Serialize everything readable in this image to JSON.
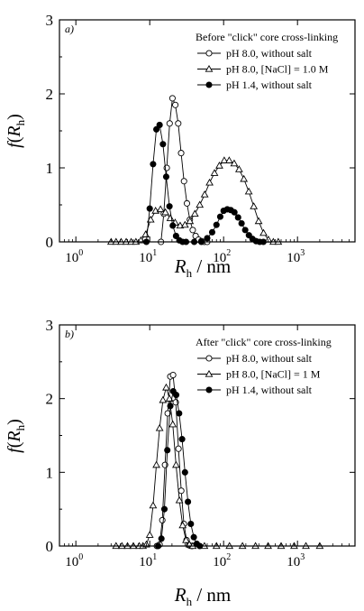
{
  "figure": {
    "ylabel_func": "f",
    "ylabel_sym": "R",
    "ylabel_sub": "h",
    "xlabel_sym": "R",
    "xlabel_sub": "h",
    "xlabel_unit": " / nm"
  },
  "chart_data": [
    {
      "type": "line",
      "panel_label": "a)",
      "legend_title": "Before \"click\" core cross-linking",
      "legend_position": "top-right",
      "x_scale": "log",
      "xlim": [
        0.6,
        6000
      ],
      "ylim": [
        0,
        3
      ],
      "x_ticks": [
        {
          "v": 1,
          "e": "0"
        },
        {
          "v": 10,
          "e": "1"
        },
        {
          "v": 100,
          "e": "2"
        },
        {
          "v": 1000,
          "e": "3"
        }
      ],
      "y_ticks": [
        0,
        1,
        2,
        3
      ],
      "grid": false,
      "series": [
        {
          "name": "pH 8.0, without salt",
          "marker": "open-circle",
          "x": [
            14.2,
            15.5,
            17.0,
            18.6,
            20.3,
            22.2,
            24.3,
            26.6,
            29.1,
            31.9,
            34.9,
            38.2,
            41.8,
            45.8,
            50.1,
            54.8,
            60.0
          ],
          "y": [
            0.0,
            0.38,
            1.0,
            1.6,
            1.94,
            1.85,
            1.6,
            1.2,
            0.82,
            0.52,
            0.3,
            0.16,
            0.08,
            0.03,
            0.01,
            0.0,
            0.0
          ]
        },
        {
          "name": "pH 8.0, [NaCl] = 1.0 M",
          "marker": "open-triangle",
          "x": [
            3.0,
            3.5,
            4.1,
            4.8,
            5.6,
            6.5,
            7.6,
            8.8,
            10.3,
            12.0,
            14.0,
            16.3,
            19.0,
            22.1,
            25.8,
            30.0,
            35.0,
            40.8,
            47.5,
            55.4,
            64.5,
            75.2,
            87.6,
            102,
            119,
            139,
            162,
            188,
            219,
            256,
            298,
            347,
            404,
            471,
            549
          ],
          "y": [
            0.0,
            0.0,
            0.0,
            0.0,
            0.0,
            0.0,
            0.02,
            0.1,
            0.3,
            0.42,
            0.44,
            0.4,
            0.32,
            0.26,
            0.22,
            0.23,
            0.28,
            0.38,
            0.5,
            0.64,
            0.8,
            0.93,
            1.03,
            1.1,
            1.1,
            1.06,
            0.98,
            0.85,
            0.68,
            0.48,
            0.28,
            0.12,
            0.03,
            0.0,
            0.0
          ]
        },
        {
          "name": "pH 1.4, without salt",
          "marker": "filled-circle",
          "x": [
            9.0,
            10.0,
            11.1,
            12.3,
            13.6,
            15.1,
            16.7,
            18.5,
            20.5,
            22.7,
            25.2,
            27.9,
            31.0,
            40.0,
            50.0,
            60.0,
            70.0,
            80.0,
            90.0,
            100,
            112,
            125,
            140,
            157,
            175,
            196,
            220,
            246,
            275,
            308,
            345
          ],
          "y": [
            0.0,
            0.45,
            1.05,
            1.52,
            1.58,
            1.32,
            0.88,
            0.48,
            0.22,
            0.08,
            0.02,
            0.0,
            0.0,
            0.0,
            0.0,
            0.05,
            0.13,
            0.23,
            0.34,
            0.42,
            0.44,
            0.43,
            0.4,
            0.33,
            0.25,
            0.16,
            0.09,
            0.04,
            0.01,
            0.0,
            0.0
          ]
        }
      ]
    },
    {
      "type": "line",
      "panel_label": "b)",
      "legend_title": "After \"click\" core cross-linking",
      "legend_position": "top-right",
      "x_scale": "log",
      "xlim": [
        0.6,
        6000
      ],
      "ylim": [
        0,
        3
      ],
      "x_ticks": [
        {
          "v": 1,
          "e": "0"
        },
        {
          "v": 10,
          "e": "1"
        },
        {
          "v": 100,
          "e": "2"
        },
        {
          "v": 1000,
          "e": "3"
        }
      ],
      "y_ticks": [
        0,
        1,
        2,
        3
      ],
      "grid": false,
      "series": [
        {
          "name": "pH 8.0, without salt",
          "marker": "open-circle",
          "x": [
            12.5,
            13.6,
            14.8,
            16.1,
            17.5,
            19.0,
            20.7,
            22.5,
            24.5,
            26.7,
            29.0,
            31.5,
            34.3,
            37.3
          ],
          "y": [
            0.0,
            0.02,
            0.35,
            1.1,
            1.8,
            2.3,
            2.32,
            1.95,
            1.32,
            0.75,
            0.3,
            0.08,
            0.01,
            0.0
          ]
        },
        {
          "name": "pH 8.0, [NaCl] = 1 M",
          "marker": "open-triangle",
          "x": [
            3.5,
            4.2,
            5.0,
            6.0,
            7.2,
            8.1,
            9.0,
            10.0,
            11.1,
            12.3,
            13.6,
            15.1,
            16.7,
            18.5,
            20.5,
            22.7,
            25.2,
            27.9,
            31.0,
            34.4,
            38.2,
            55.0,
            80.0,
            120,
            180,
            270,
            400,
            600,
            900,
            1300,
            2000
          ],
          "y": [
            0.0,
            0.0,
            0.0,
            0.0,
            0.0,
            0.0,
            0.02,
            0.15,
            0.55,
            1.1,
            1.6,
            1.98,
            2.15,
            2.0,
            1.65,
            1.1,
            0.62,
            0.28,
            0.08,
            0.02,
            0.0,
            0.0,
            0.0,
            0.0,
            0.0,
            0.0,
            0.0,
            0.0,
            0.0,
            0.0,
            0.0
          ]
        },
        {
          "name": "pH 1.4, without salt",
          "marker": "filled-circle",
          "x": [
            13.0,
            14.4,
            15.8,
            17.3,
            19.0,
            20.8,
            22.8,
            25.0,
            27.4,
            30.0,
            32.9,
            36.0,
            39.5,
            43.3,
            47.5
          ],
          "y": [
            0.0,
            0.1,
            0.5,
            1.3,
            1.9,
            2.1,
            2.05,
            1.8,
            1.45,
            1.0,
            0.6,
            0.3,
            0.12,
            0.03,
            0.0
          ]
        }
      ]
    }
  ]
}
